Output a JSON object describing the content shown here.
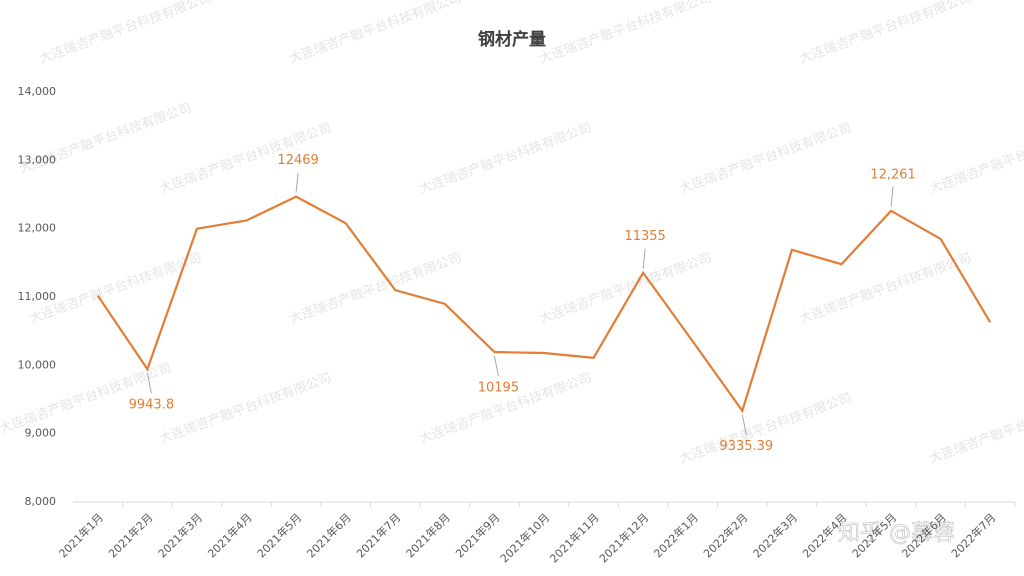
{
  "chart_data": {
    "type": "line",
    "title": "钢材产量",
    "watermark": "大连瑞咨产融平台科技有限公司",
    "credit": "知乎 @慕蓉",
    "categories": [
      "2021年1月",
      "2021年2月",
      "2021年3月",
      "2021年4月",
      "2021年5月",
      "2021年6月",
      "2021年7月",
      "2021年8月",
      "2021年9月",
      "2021年10月",
      "2021年11月",
      "2021年12月",
      "2022年1月",
      "2022年2月",
      "2022年3月",
      "2022年4月",
      "2022年5月",
      "2022年6月",
      "2022年7月"
    ],
    "values": [
      11020,
      9943.8,
      12000,
      12120,
      12469,
      12080,
      11100,
      10900,
      10195,
      10180,
      10110,
      11355,
      10350,
      9335.39,
      11690,
      11480,
      12261,
      11850,
      10630
    ],
    "value_labels": [
      null,
      "9943.8",
      null,
      null,
      "12469",
      null,
      null,
      null,
      "10195",
      null,
      null,
      "11355",
      null,
      "9335.39",
      null,
      null,
      "12,261",
      null,
      null
    ],
    "color": "#e37d35",
    "ylim": [
      8000,
      14000
    ],
    "yticks": [
      {
        "value": 8000,
        "label": "8,000"
      },
      {
        "value": 9000,
        "label": "9,000"
      },
      {
        "value": 10000,
        "label": "10,000"
      },
      {
        "value": 11000,
        "label": "11,000"
      },
      {
        "value": 12000,
        "label": "12,000"
      },
      {
        "value": 13000,
        "label": "13,000"
      },
      {
        "value": 14000,
        "label": "14,000"
      }
    ],
    "grid": false
  }
}
